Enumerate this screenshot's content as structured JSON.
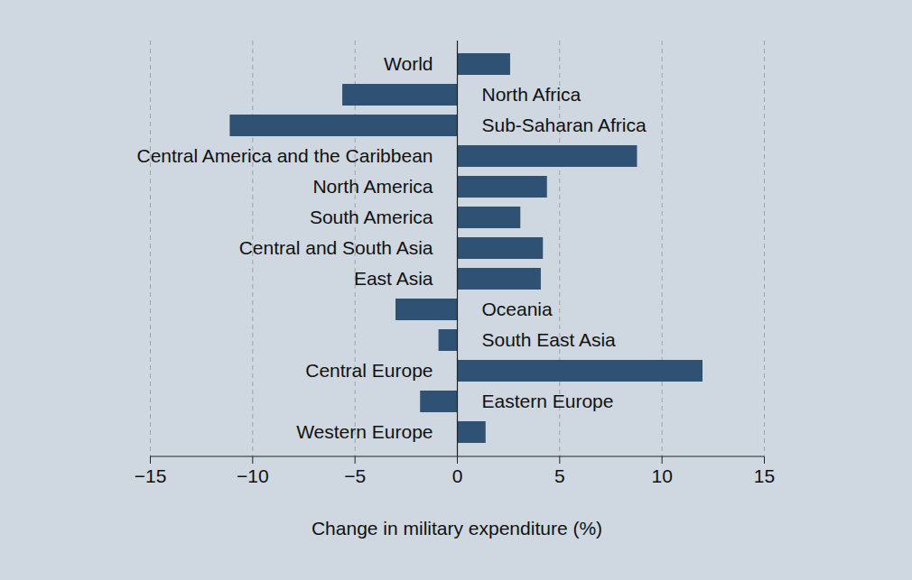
{
  "chart_data": {
    "type": "bar",
    "orientation": "horizontal",
    "xlabel": "Change in military expenditure (%)",
    "categories": [
      "World",
      "North Africa",
      "Sub-Saharan Africa",
      "Central America and the Caribbean",
      "North America",
      "South America",
      "Central and South Asia",
      "East Asia",
      "Oceania",
      "South East Asia",
      "Central Europe",
      "Eastern Europe",
      "Western Europe"
    ],
    "values": [
      2.6,
      -5.6,
      -11.1,
      8.8,
      4.4,
      3.1,
      4.2,
      4.1,
      -3.0,
      -0.9,
      12.0,
      -1.8,
      1.4
    ],
    "color": "#2f5274",
    "xlim": [
      -15,
      15
    ],
    "xticks": [
      {
        "value": -15,
        "label": "−15"
      },
      {
        "value": -10,
        "label": "−10"
      },
      {
        "value": -5,
        "label": "−5"
      },
      0,
      5,
      10,
      15
    ],
    "grid": true
  }
}
